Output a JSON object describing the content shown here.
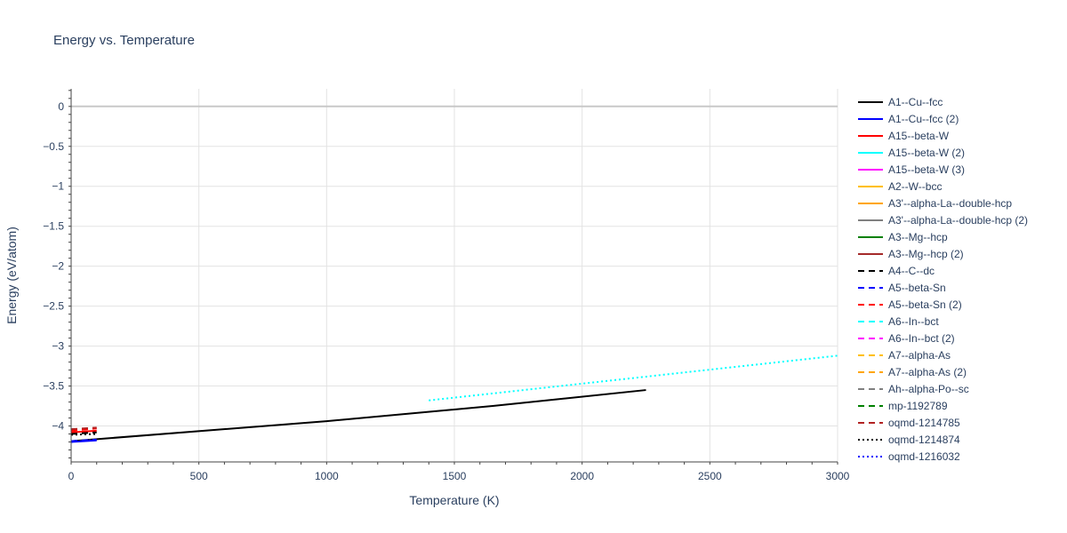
{
  "chart_data": {
    "type": "line",
    "title": "Energy vs. Temperature",
    "xlabel": "Temperature (K)",
    "ylabel": "Energy (eV/atom)",
    "xlim": [
      0,
      3000
    ],
    "ylim": [
      -4.45,
      0.22
    ],
    "x_ticks": [
      0,
      500,
      1000,
      1500,
      2000,
      2500,
      3000
    ],
    "x_tick_labels": [
      "0",
      "500",
      "1000",
      "1500",
      "2000",
      "2500",
      "3000"
    ],
    "y_ticks": [
      0,
      -0.5,
      -1,
      -1.5,
      -2,
      -2.5,
      -3,
      -3.5,
      -4
    ],
    "y_tick_labels": [
      "0",
      "−0.5",
      "−1",
      "−1.5",
      "−2",
      "−2.5",
      "−3",
      "−3.5",
      "−4"
    ],
    "grid": true,
    "legend_position": "right",
    "series": [
      {
        "name": "A1--Cu--fcc",
        "color": "#000000",
        "dash": "solid",
        "x": [
          0,
          1000,
          1650,
          2250
        ],
        "y": [
          -4.19,
          -3.94,
          -3.75,
          -3.55
        ]
      },
      {
        "name": "A1--Cu--fcc (2)",
        "color": "#0000ff",
        "dash": "solid",
        "x": [
          0,
          100
        ],
        "y": [
          -4.2,
          -4.18
        ]
      },
      {
        "name": "A15--beta-W",
        "color": "#ff0000",
        "dash": "solid",
        "x": [
          0,
          100
        ],
        "y": [
          -4.08,
          -4.06
        ]
      },
      {
        "name": "A15--beta-W (2)",
        "color": "#00ffff",
        "dash": "solid",
        "x": [],
        "y": []
      },
      {
        "name": "A15--beta-W (3)",
        "color": "#ff00ff",
        "dash": "solid",
        "x": [],
        "y": []
      },
      {
        "name": "A2--W--bcc",
        "color": "#ffbf00",
        "dash": "solid",
        "x": [],
        "y": []
      },
      {
        "name": "A3'--alpha-La--double-hcp",
        "color": "#ffa500",
        "dash": "solid",
        "x": [],
        "y": []
      },
      {
        "name": "A3'--alpha-La--double-hcp (2)",
        "color": "#808080",
        "dash": "solid",
        "x": [],
        "y": []
      },
      {
        "name": "A3--Mg--hcp",
        "color": "#008000",
        "dash": "solid",
        "x": [],
        "y": []
      },
      {
        "name": "A3--Mg--hcp (2)",
        "color": "#a52a2a",
        "dash": "solid",
        "x": [],
        "y": []
      },
      {
        "name": "A4--C--dc",
        "color": "#000000",
        "dash": "dash",
        "x": [
          0,
          100
        ],
        "y": [
          -4.1,
          -4.08
        ]
      },
      {
        "name": "A5--beta-Sn",
        "color": "#0000ff",
        "dash": "dash",
        "x": [
          0,
          100
        ],
        "y": [
          -4.19,
          -4.17
        ]
      },
      {
        "name": "A5--beta-Sn (2)",
        "color": "#ff0000",
        "dash": "dash",
        "x": [
          0,
          100
        ],
        "y": [
          -4.06,
          -4.03
        ]
      },
      {
        "name": "A6--In--bct",
        "color": "#00ffff",
        "dash": "dash",
        "x": [],
        "y": []
      },
      {
        "name": "A6--In--bct (2)",
        "color": "#ff00ff",
        "dash": "dash",
        "x": [],
        "y": []
      },
      {
        "name": "A7--alpha-As",
        "color": "#ffbf00",
        "dash": "dash",
        "x": [],
        "y": []
      },
      {
        "name": "A7--alpha-As (2)",
        "color": "#ffa500",
        "dash": "dash",
        "x": [],
        "y": []
      },
      {
        "name": "Ah--alpha-Po--sc",
        "color": "#808080",
        "dash": "dash",
        "x": [],
        "y": []
      },
      {
        "name": "mp-1192789",
        "color": "#008000",
        "dash": "dash",
        "x": [],
        "y": []
      },
      {
        "name": "oqmd-1214785",
        "color": "#b22222",
        "dash": "dash",
        "x": [
          0,
          100
        ],
        "y": [
          -4.04,
          -4.02
        ]
      },
      {
        "name": "oqmd-1214874",
        "color": "#000000",
        "dash": "dot",
        "x": [
          0,
          100
        ],
        "y": [
          -4.11,
          -4.1
        ]
      },
      {
        "name": "oqmd-1216032",
        "color": "#0000ff",
        "dash": "dot",
        "x": [
          0,
          100
        ],
        "y": [
          -4.2,
          -4.17
        ]
      },
      {
        "name": "",
        "color": "#00ffff",
        "dash": "dot",
        "x": [
          1400,
          2000,
          3000
        ],
        "y": [
          -3.68,
          -3.47,
          -3.12
        ]
      }
    ]
  }
}
